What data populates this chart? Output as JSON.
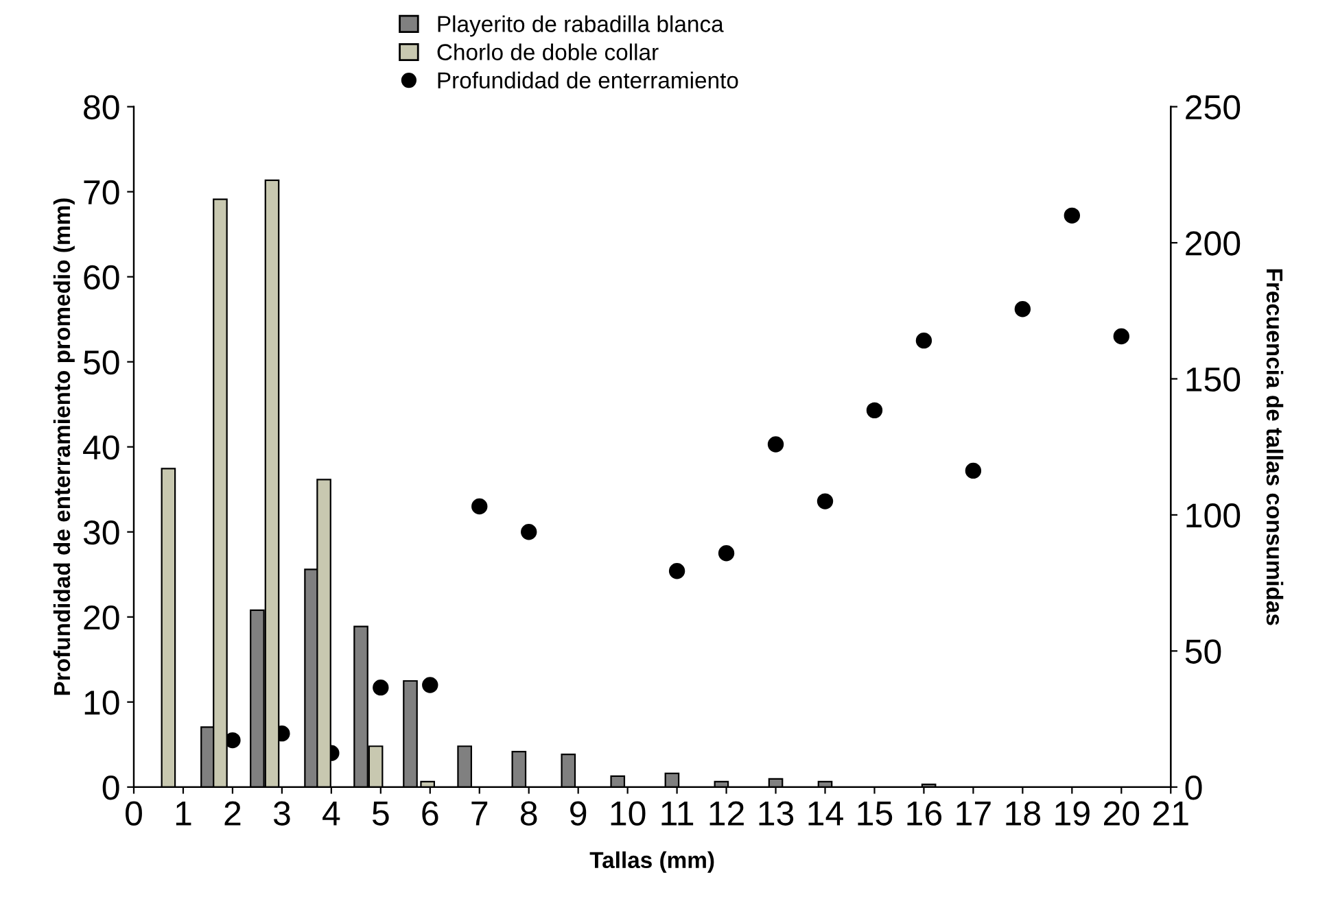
{
  "chart_data": {
    "type": "bar",
    "xlabel": "Tallas (mm)",
    "ylabel": "Profundidad de enterramiento promedio (mm)",
    "y2label": "Frecuencia de tallas consumidas",
    "xlim": [
      0,
      21
    ],
    "xticks": [
      0,
      1,
      2,
      3,
      4,
      5,
      6,
      7,
      8,
      9,
      10,
      11,
      12,
      13,
      14,
      15,
      16,
      17,
      18,
      19,
      20,
      21
    ],
    "ylim": [
      0,
      80
    ],
    "yticks": [
      0,
      10,
      20,
      30,
      40,
      50,
      60,
      70,
      80
    ],
    "y2lim": [
      0,
      250
    ],
    "y2ticks": [
      0,
      50,
      100,
      150,
      200,
      250
    ],
    "grid": false,
    "legend": "top",
    "marker": "circle",
    "series": [
      {
        "name": "Playerito de rabadilla blanca",
        "axis": "y2",
        "color": "#808080",
        "x": [
          1.5,
          2.5,
          3.6,
          4.6,
          5.6,
          6.7,
          7.8,
          8.8,
          9.8,
          10.9,
          11.9,
          13.0,
          14.0,
          16.1
        ],
        "values": [
          22,
          65,
          80,
          59,
          39,
          15,
          13,
          12,
          4,
          5,
          2,
          3,
          2,
          1
        ]
      },
      {
        "name": "Chorlo de doble collar",
        "axis": "y2",
        "color": "#c8c8b0",
        "x": [
          0.7,
          1.75,
          2.8,
          3.85,
          4.9,
          5.95
        ],
        "values": [
          117,
          216,
          223,
          113,
          15,
          2
        ]
      },
      {
        "name": "Profundidad de enterramiento",
        "type": "scatter",
        "axis": "y",
        "color": "#000000",
        "x": [
          2,
          3,
          4,
          5,
          6,
          7,
          8,
          11,
          12,
          13,
          14,
          15,
          16,
          17,
          18,
          19,
          20
        ],
        "values": [
          5.5,
          6.3,
          4,
          11.7,
          12,
          33,
          30,
          25.4,
          27.5,
          40.3,
          33.6,
          44.3,
          52.5,
          37.2,
          56.2,
          67.2,
          53
        ]
      }
    ]
  }
}
